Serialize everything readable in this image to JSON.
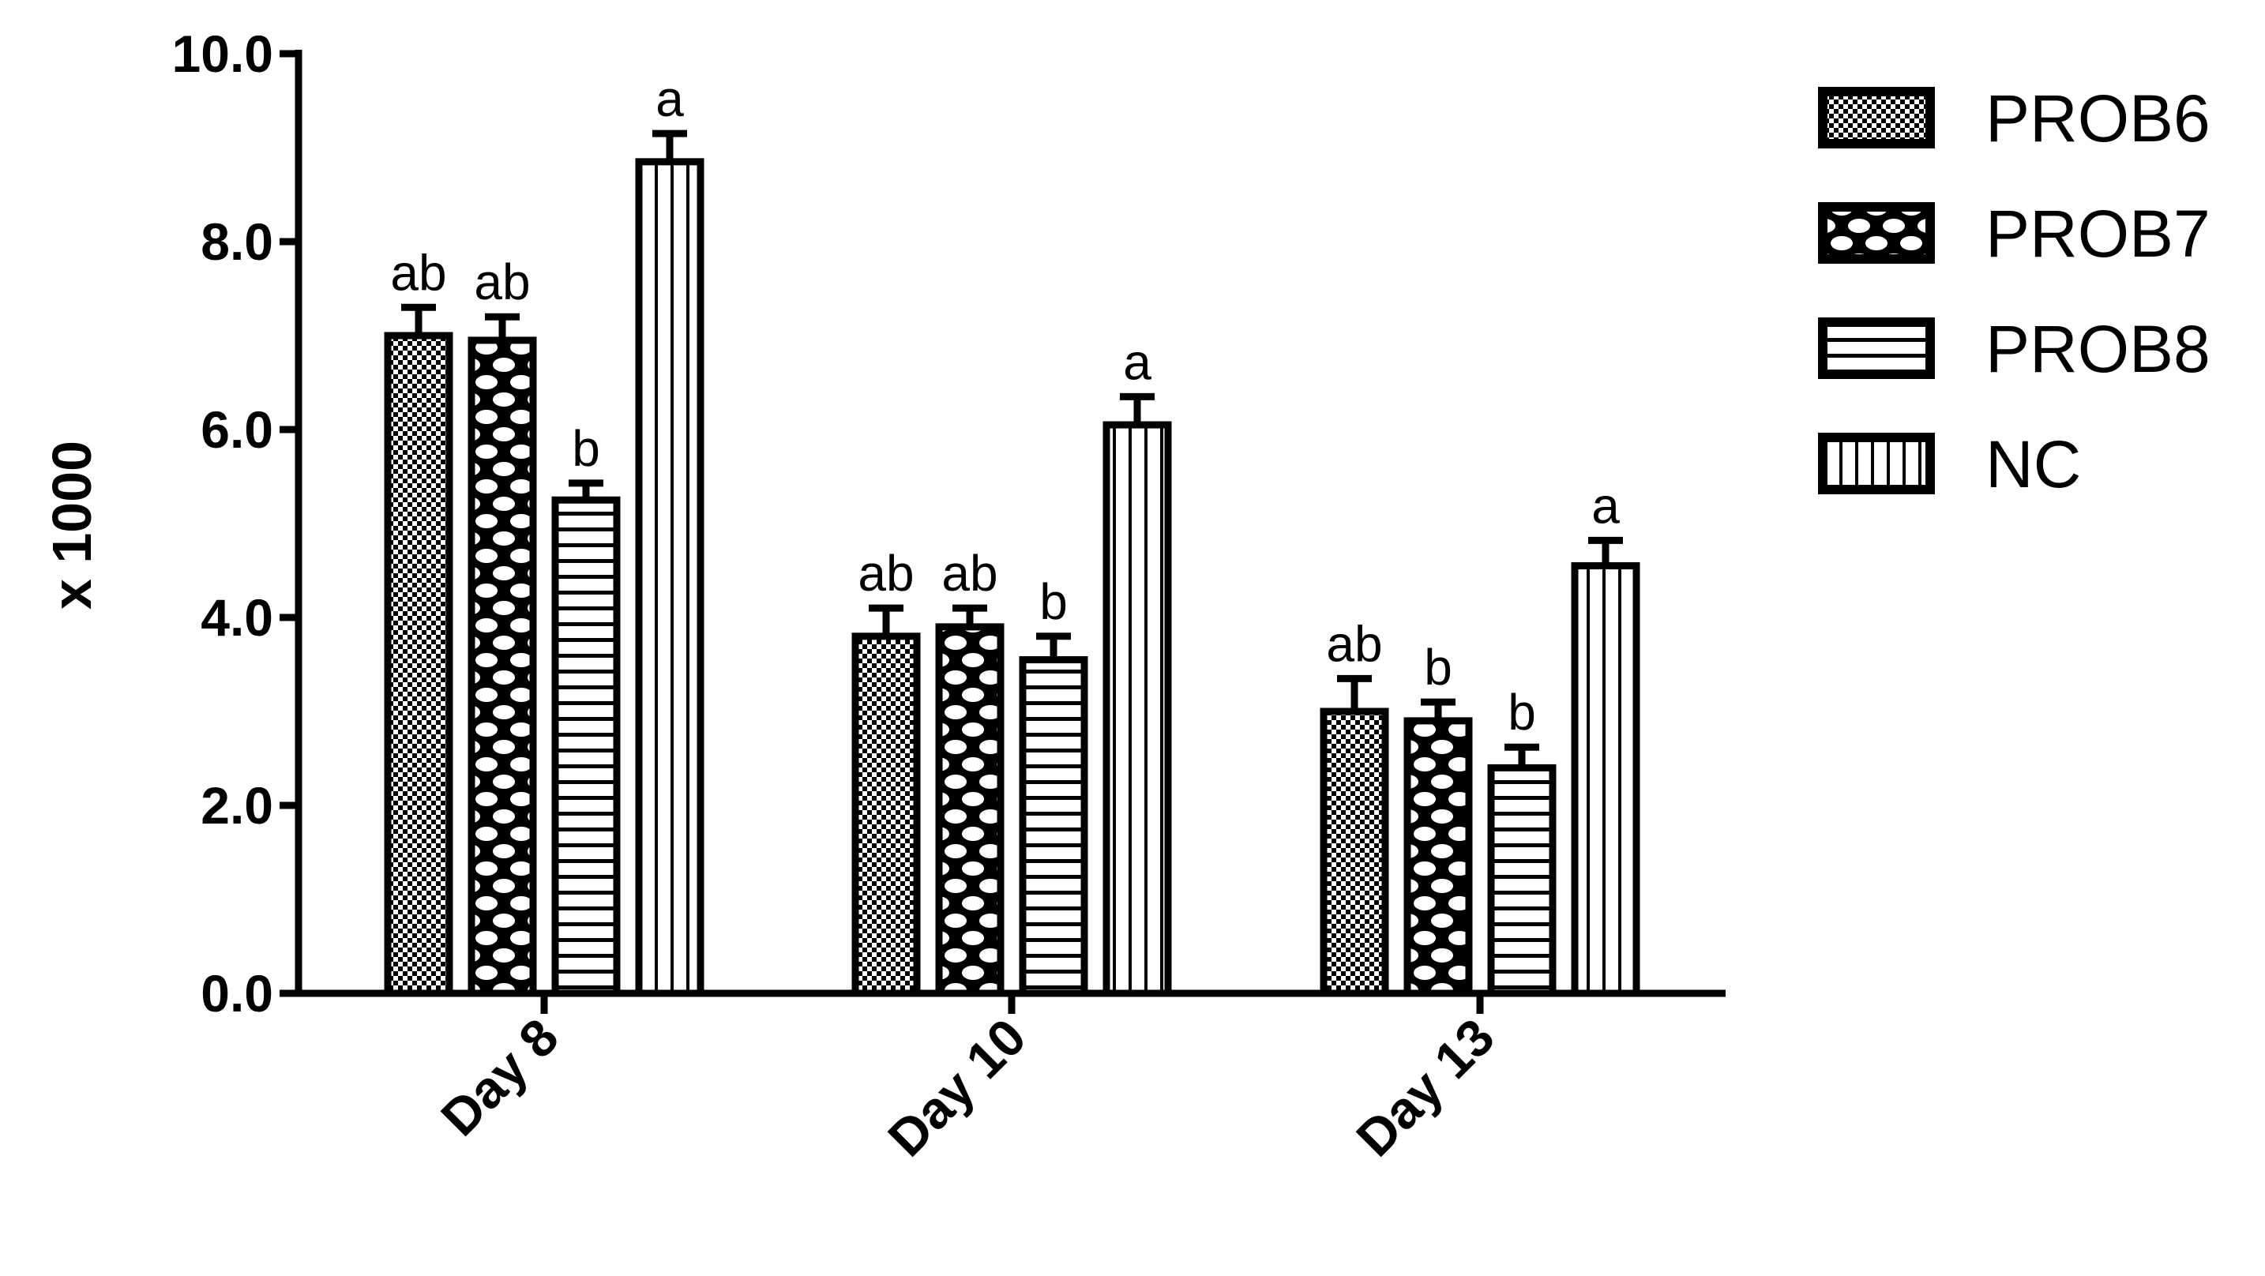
{
  "chart_data": {
    "type": "bar",
    "title": "",
    "xlabel": "",
    "ylabel": "x 1000",
    "ylim": [
      0,
      10
    ],
    "y_ticks": [
      "0.0",
      "2.0",
      "4.0",
      "6.0",
      "8.0",
      "10.0"
    ],
    "categories": [
      "Day 8",
      "Day 10",
      "Day 13"
    ],
    "legend": "right",
    "grid": false,
    "series": [
      {
        "name": "PROB6",
        "pattern": "fine-checker",
        "values": [
          7.0,
          3.8,
          3.0
        ],
        "errors": [
          0.3,
          0.3,
          0.35
        ],
        "significance": [
          "ab",
          "ab",
          "ab"
        ]
      },
      {
        "name": "PROB7",
        "pattern": "coarse-checker",
        "values": [
          6.95,
          3.9,
          2.9
        ],
        "errors": [
          0.25,
          0.2,
          0.2
        ],
        "significance": [
          "ab",
          "ab",
          "b"
        ]
      },
      {
        "name": "PROB8",
        "pattern": "horizontal-lines",
        "values": [
          5.25,
          3.55,
          2.4
        ],
        "errors": [
          0.18,
          0.25,
          0.22
        ],
        "significance": [
          "b",
          "b",
          "b"
        ]
      },
      {
        "name": "NC",
        "pattern": "vertical-lines",
        "values": [
          8.85,
          6.05,
          4.55
        ],
        "errors": [
          0.3,
          0.3,
          0.27
        ],
        "significance": [
          "a",
          "a",
          "a"
        ]
      }
    ],
    "colors": {
      "stroke": "#000000",
      "fill": "#ffffff"
    }
  }
}
